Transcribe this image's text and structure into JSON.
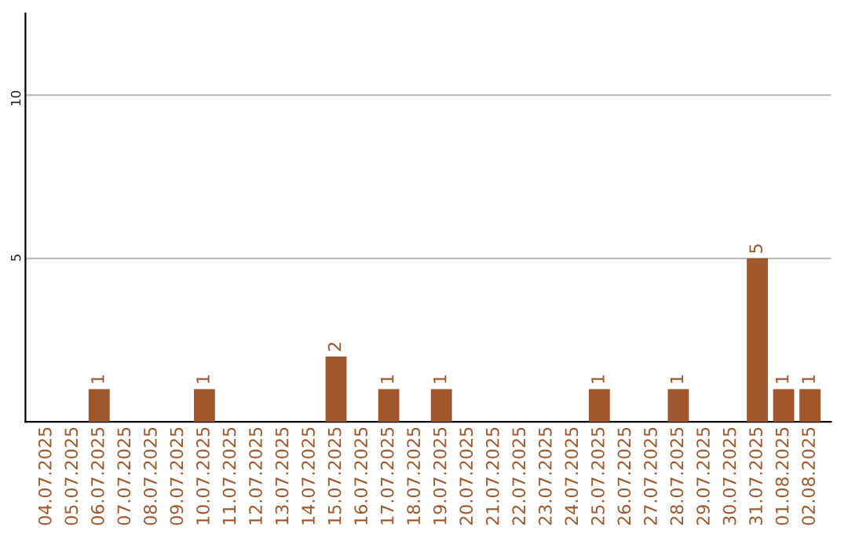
{
  "chart_data": {
    "type": "bar",
    "categories": [
      "04.07.2025",
      "05.07.2025",
      "06.07.2025",
      "07.07.2025",
      "08.07.2025",
      "09.07.2025",
      "10.07.2025",
      "11.07.2025",
      "12.07.2025",
      "13.07.2025",
      "14.07.2025",
      "15.07.2025",
      "16.07.2025",
      "17.07.2025",
      "18.07.2025",
      "19.07.2025",
      "20.07.2025",
      "21.07.2025",
      "22.07.2025",
      "23.07.2025",
      "24.07.2025",
      "25.07.2025",
      "26.07.2025",
      "27.07.2025",
      "28.07.2025",
      "29.07.2025",
      "30.07.2025",
      "31.07.2025",
      "01.08.2025",
      "02.08.2025"
    ],
    "values": [
      0,
      0,
      1,
      0,
      0,
      0,
      1,
      0,
      0,
      0,
      0,
      2,
      0,
      1,
      0,
      1,
      0,
      0,
      0,
      0,
      0,
      1,
      0,
      0,
      1,
      0,
      0,
      5,
      1,
      1
    ],
    "value_labels": [
      null,
      null,
      "1",
      null,
      null,
      null,
      "1",
      null,
      null,
      null,
      null,
      "2",
      null,
      "1",
      null,
      "1",
      null,
      null,
      null,
      null,
      null,
      "1",
      null,
      null,
      "1",
      null,
      null,
      "5",
      "1",
      "1"
    ],
    "color": "#a0572b",
    "ylim": [
      0,
      12.5
    ],
    "yticks": [
      5,
      10
    ],
    "grid": "y"
  }
}
